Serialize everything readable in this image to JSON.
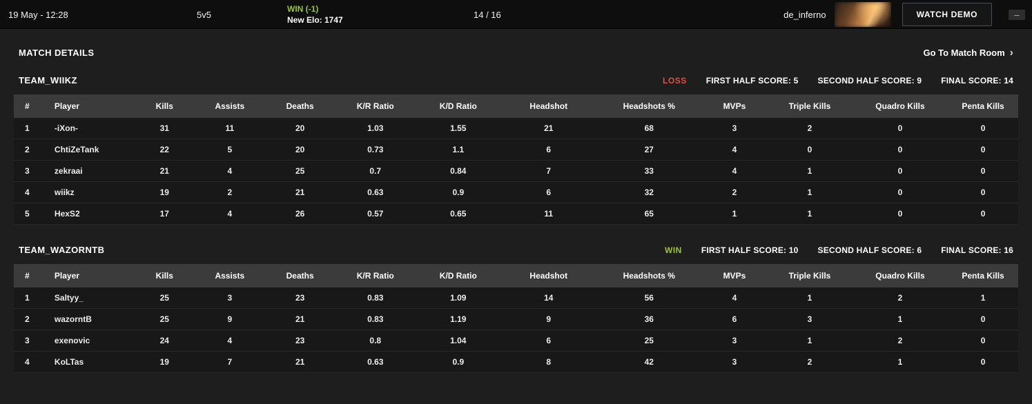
{
  "top_bar": {
    "datetime": "19 May - 12:28",
    "mode": "5v5",
    "result": "WIN (-1)",
    "new_elo": "New Elo: 1747",
    "score": "14 / 16",
    "map_name": "de_inferno",
    "watch_demo_label": "WATCH DEMO",
    "minimize_glyph": "–"
  },
  "header": {
    "title": "MATCH DETAILS",
    "match_room_label": "Go To Match Room",
    "chevron_glyph": "›"
  },
  "colors": {
    "win": "#9dc434",
    "loss": "#e05045"
  },
  "table_columns": [
    "#",
    "Player",
    "Kills",
    "Assists",
    "Deaths",
    "K/R Ratio",
    "K/D Ratio",
    "Headshot",
    "Headshots %",
    "MVPs",
    "Triple Kills",
    "Quadro Kills",
    "Penta Kills"
  ],
  "teams": [
    {
      "name": "TEAM_WIIKZ",
      "result": "LOSS",
      "stats": [
        {
          "label": "FIRST HALF SCORE:",
          "value": "5"
        },
        {
          "label": "SECOND HALF SCORE:",
          "value": "9"
        },
        {
          "label": "FINAL SCORE:",
          "value": "14"
        }
      ],
      "players": [
        [
          "1",
          "-iXon-",
          "31",
          "11",
          "20",
          "1.03",
          "1.55",
          "21",
          "68",
          "3",
          "2",
          "0",
          "0"
        ],
        [
          "2",
          "ChtiZeTank",
          "22",
          "5",
          "20",
          "0.73",
          "1.1",
          "6",
          "27",
          "4",
          "0",
          "0",
          "0"
        ],
        [
          "3",
          "zekraai",
          "21",
          "4",
          "25",
          "0.7",
          "0.84",
          "7",
          "33",
          "4",
          "1",
          "0",
          "0"
        ],
        [
          "4",
          "wiikz",
          "19",
          "2",
          "21",
          "0.63",
          "0.9",
          "6",
          "32",
          "2",
          "1",
          "0",
          "0"
        ],
        [
          "5",
          "HexS2",
          "17",
          "4",
          "26",
          "0.57",
          "0.65",
          "11",
          "65",
          "1",
          "1",
          "0",
          "0"
        ]
      ]
    },
    {
      "name": "TEAM_WAZORNTB",
      "result": "WIN",
      "stats": [
        {
          "label": "FIRST HALF SCORE:",
          "value": "10"
        },
        {
          "label": "SECOND HALF SCORE:",
          "value": "6"
        },
        {
          "label": "FINAL SCORE:",
          "value": "16"
        }
      ],
      "players": [
        [
          "1",
          "Saltyy_",
          "25",
          "3",
          "23",
          "0.83",
          "1.09",
          "14",
          "56",
          "4",
          "1",
          "2",
          "1"
        ],
        [
          "2",
          "wazorntB",
          "25",
          "9",
          "21",
          "0.83",
          "1.19",
          "9",
          "36",
          "6",
          "3",
          "1",
          "0"
        ],
        [
          "3",
          "exenovic",
          "24",
          "4",
          "23",
          "0.8",
          "1.04",
          "6",
          "25",
          "3",
          "1",
          "2",
          "0"
        ],
        [
          "4",
          "KoLTas",
          "19",
          "7",
          "21",
          "0.63",
          "0.9",
          "8",
          "42",
          "3",
          "2",
          "1",
          "0"
        ]
      ]
    }
  ]
}
